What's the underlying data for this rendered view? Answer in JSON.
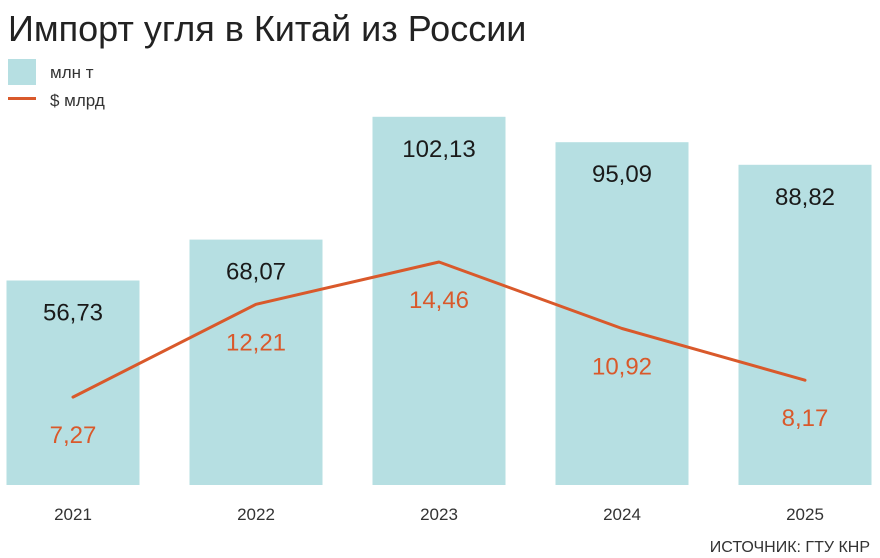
{
  "chart_data": {
    "type": "bar",
    "title": "Импорт угля в Китай из России",
    "categories": [
      "2021",
      "2022",
      "2023",
      "2024",
      "2025"
    ],
    "series": [
      {
        "name": "млн т",
        "type": "bar",
        "values": [
          56.73,
          68.07,
          102.13,
          95.09,
          88.82
        ],
        "labels": [
          "56,73",
          "68,07",
          "102,13",
          "95,09",
          "88,82"
        ]
      },
      {
        "name": "$ млрд",
        "type": "line",
        "values": [
          7.27,
          12.21,
          14.46,
          10.92,
          8.17
        ],
        "labels": [
          "7,27",
          "12,21",
          "14,46",
          "10,92",
          "8,17"
        ]
      }
    ],
    "legend_position": "top-left",
    "grid": false,
    "source": "ИСТОЧНИК: ГТУ КНР"
  },
  "colors": {
    "bar": "#b6dfe2",
    "line": "#d9592b",
    "text": "#1a1a1a"
  }
}
